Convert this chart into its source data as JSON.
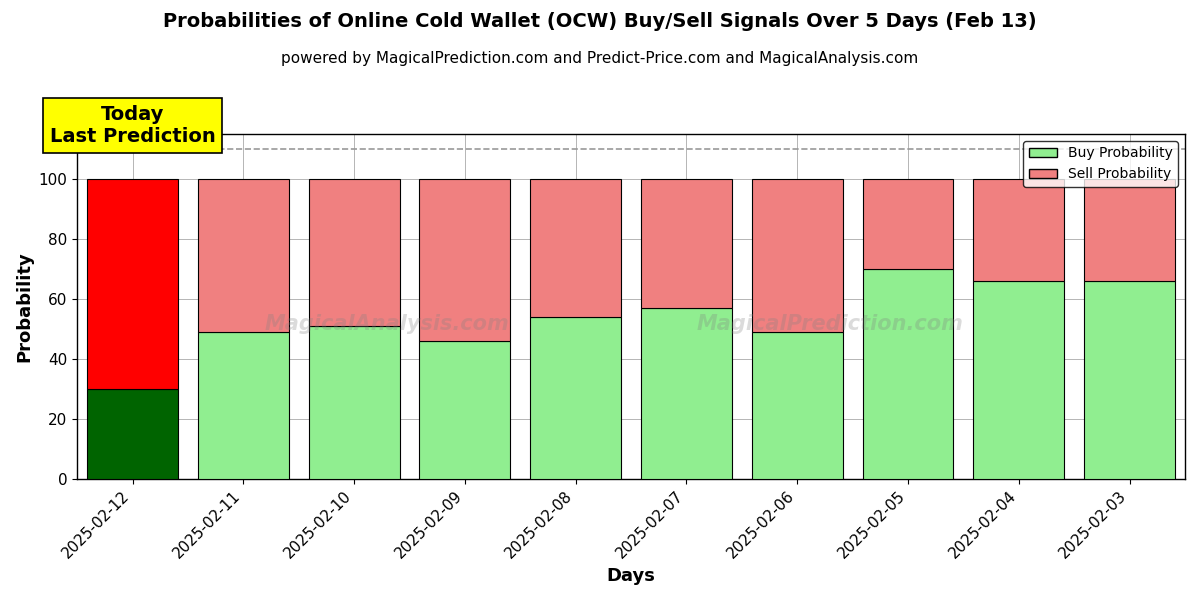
{
  "title": "Probabilities of Online Cold Wallet (OCW) Buy/Sell Signals Over 5 Days (Feb 13)",
  "subtitle": "powered by MagicalPrediction.com and Predict-Price.com and MagicalAnalysis.com",
  "xlabel": "Days",
  "ylabel": "Probability",
  "watermark_left": "MagicalAnalysis.com",
  "watermark_right": "MagicalPrediction.com",
  "dates": [
    "2025-02-12",
    "2025-02-11",
    "2025-02-10",
    "2025-02-09",
    "2025-02-08",
    "2025-02-07",
    "2025-02-06",
    "2025-02-05",
    "2025-02-04",
    "2025-02-03"
  ],
  "buy_values": [
    30,
    49,
    51,
    46,
    54,
    57,
    49,
    70,
    66,
    66
  ],
  "sell_values": [
    70,
    51,
    49,
    54,
    46,
    43,
    51,
    30,
    34,
    34
  ],
  "today_bar_buy_color": "#006400",
  "today_bar_sell_color": "#FF0000",
  "other_bar_buy_color": "#90EE90",
  "other_bar_sell_color": "#F08080",
  "bar_edgecolor": "#000000",
  "today_annotation": "Today\nLast Prediction",
  "dashed_line_y": 110,
  "ylim": [
    0,
    115
  ],
  "yticks": [
    0,
    20,
    40,
    60,
    80,
    100
  ],
  "legend_buy_label": "Buy Probability",
  "legend_sell_label": "Sell Probability",
  "title_fontsize": 14,
  "subtitle_fontsize": 11,
  "axis_label_fontsize": 13,
  "tick_fontsize": 11,
  "grid_color": "#999999",
  "bg_color": "#ffffff",
  "annotation_bg": "#FFFF00",
  "annotation_fontsize": 14,
  "bar_width": 0.82
}
